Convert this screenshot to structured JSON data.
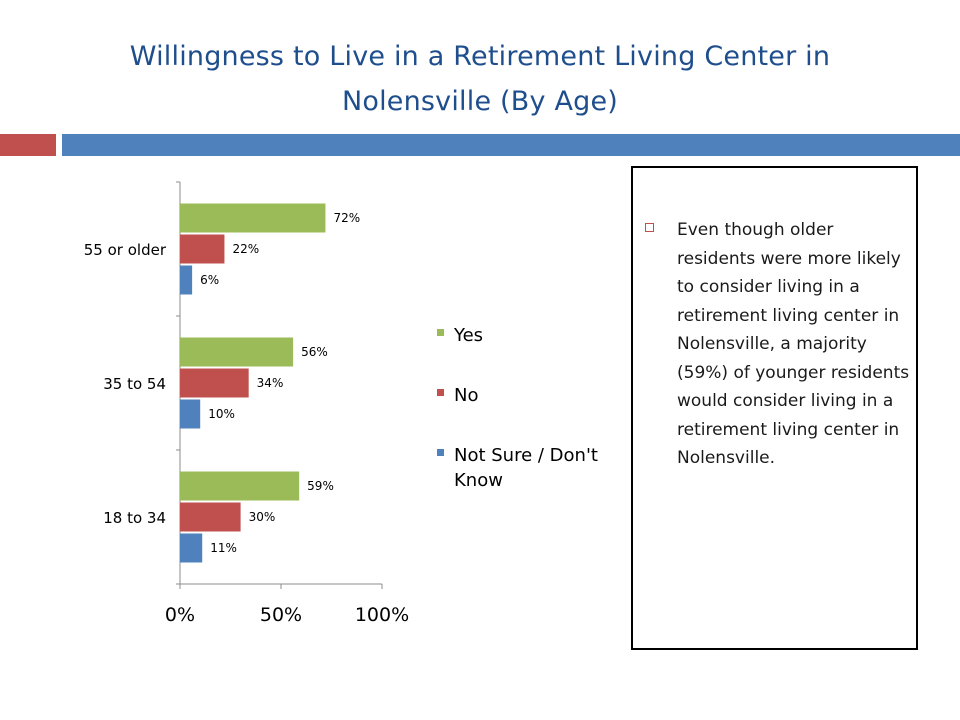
{
  "slide": {
    "title_line1": "Willingness to Live in a Retirement Living Center in",
    "title_line2": "Nolensville  (By Age)",
    "accent_left_color": "#c0504d",
    "accent_right_color": "#4f81bd"
  },
  "text_box": {
    "bullet_icon": "square-bullet-icon",
    "bullet": "Even though older residents were more likely to consider living in a retirement living center in Nolensville, a majority (59%) of younger residents would consider living in a retirement living center in Nolensville."
  },
  "chart_data": {
    "type": "bar",
    "orientation": "horizontal",
    "categories": [
      "55 or older",
      "35 to 54",
      "18 to 34"
    ],
    "series": [
      {
        "name": "Yes",
        "values": [
          72,
          56,
          59
        ],
        "labels": [
          "72%",
          "56%",
          "59%"
        ],
        "color": "#9bbb59"
      },
      {
        "name": "No",
        "values": [
          22,
          34,
          30
        ],
        "labels": [
          "22%",
          "34%",
          "30%"
        ],
        "color": "#c0504d"
      },
      {
        "name": "Not Sure / Don't Know",
        "values": [
          6,
          10,
          11
        ],
        "labels": [
          "6%",
          "10%",
          "11%"
        ],
        "color": "#4f81bd"
      }
    ],
    "x_tick_labels": [
      "0%",
      "50%",
      "100%"
    ],
    "xlim": [
      0,
      100
    ],
    "grid": false,
    "legend_position": "right"
  }
}
